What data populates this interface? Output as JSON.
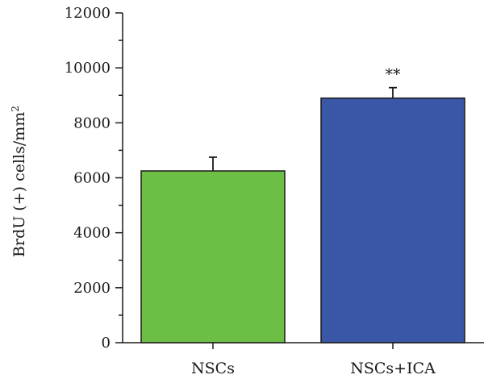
{
  "chart_data": {
    "type": "bar",
    "categories": [
      "NSCs",
      "NSCs+ICA"
    ],
    "values": [
      6250,
      8900
    ],
    "error_upper": [
      6750,
      9280
    ],
    "annotations": [
      "",
      "**"
    ],
    "ylabel_main": "BrdU (+) cells/mm",
    "ylabel_sup": "2",
    "ylim": [
      0,
      12000
    ],
    "yticks": [
      0,
      2000,
      4000,
      6000,
      8000,
      10000,
      12000
    ],
    "yminor_step": 1000,
    "colors": [
      "#6cbf44",
      "#3a56a6"
    ],
    "grid": false
  }
}
